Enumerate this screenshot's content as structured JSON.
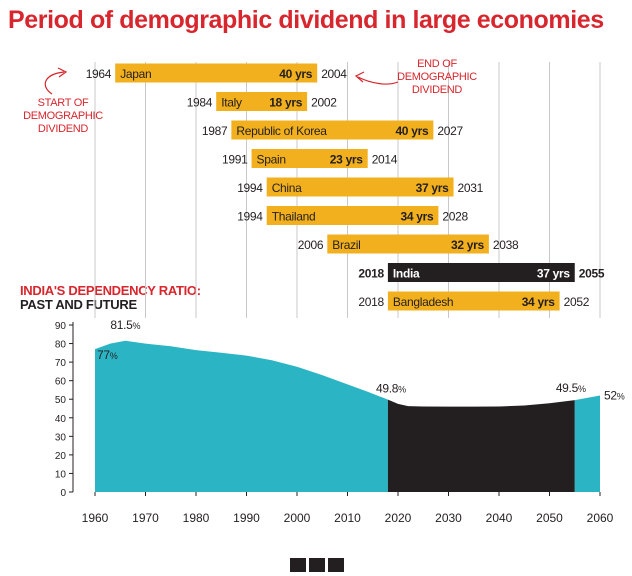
{
  "title": "Period of demographic dividend in large economies",
  "chart_data": [
    {
      "type": "bar",
      "subtype": "timeline-range",
      "bars": [
        {
          "country": "Japan",
          "start": 1964,
          "end": 2004,
          "duration": "40 yrs"
        },
        {
          "country": "Italy",
          "start": 1984,
          "end": 2002,
          "duration": "18 yrs"
        },
        {
          "country": "Republic of Korea",
          "start": 1987,
          "end": 2027,
          "duration": "40 yrs"
        },
        {
          "country": "Spain",
          "start": 1991,
          "end": 2014,
          "duration": "23 yrs"
        },
        {
          "country": "China",
          "start": 1994,
          "end": 2031,
          "duration": "37 yrs"
        },
        {
          "country": "Thailand",
          "start": 1994,
          "end": 2028,
          "duration": "34 yrs"
        },
        {
          "country": "Brazil",
          "start": 2006,
          "end": 2038,
          "duration": "32 yrs"
        },
        {
          "country": "India",
          "start": 2018,
          "end": 2055,
          "duration": "37 yrs",
          "highlight": true
        },
        {
          "country": "Bangladesh",
          "start": 2018,
          "end": 2052,
          "duration": "34 yrs"
        }
      ],
      "annotations": {
        "start": [
          "START OF",
          "DEMOGRAPHIC",
          "DIVIDEND"
        ],
        "end": [
          "END OF",
          "DEMOGRAPHIC",
          "DIVIDEND"
        ]
      },
      "colors": {
        "bar": "#f2b01e",
        "highlight": "#231f20",
        "annotation": "#d7262d"
      }
    },
    {
      "type": "area",
      "title_lines": [
        "INDIA'S DEPENDENCY RATIO:",
        "PAST AND FUTURE"
      ],
      "x": [
        1960,
        1963,
        1966,
        1970,
        1975,
        1980,
        1985,
        1990,
        1995,
        2000,
        2005,
        2010,
        2014,
        2018,
        2020,
        2022,
        2025,
        2030,
        2035,
        2040,
        2045,
        2050,
        2055,
        2060
      ],
      "y": [
        77,
        80,
        81.5,
        80,
        78.5,
        76.5,
        75,
        73.5,
        71,
        67.5,
        63,
        58,
        54,
        49.8,
        47.5,
        46.3,
        46.1,
        46,
        46,
        46.1,
        46.6,
        47.8,
        49.5,
        52
      ],
      "xlim": [
        1958,
        2062
      ],
      "ylim": [
        0,
        90
      ],
      "xticks": [
        "1960",
        "1970",
        "1980",
        "1990",
        "2000",
        "2010",
        "2020",
        "2030",
        "2040",
        "2050",
        "2060"
      ],
      "yticks": [
        "0",
        "10",
        "20",
        "30",
        "40",
        "50",
        "60",
        "70",
        "80",
        "90"
      ],
      "highlight_range": [
        2018,
        2055
      ],
      "labels": [
        {
          "x": 1960,
          "text": "77%"
        },
        {
          "x": 1966,
          "text": "81.5%"
        },
        {
          "x": 2018,
          "text": "49.8%"
        },
        {
          "x": 2055,
          "text": "49.5%"
        },
        {
          "x": 2060,
          "text": "52%"
        }
      ],
      "colors": {
        "area": "#2bb5c4",
        "highlight": "#231f20",
        "title_red": "#d7262d",
        "title_dark": "#231f20"
      }
    }
  ]
}
